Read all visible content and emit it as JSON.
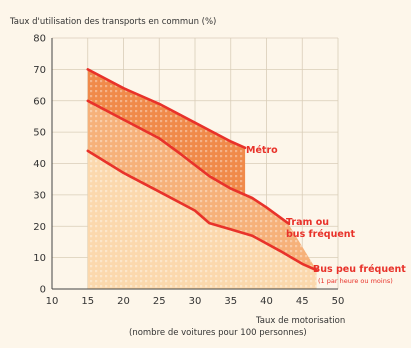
{
  "chart_data": {
    "type": "area",
    "ylabel": "Taux d'utilisation des transports en commun (%)",
    "xlabel_line1": "Taux de motorisation",
    "xlabel_line2": "(nombre de voitures pour 100 personnes)",
    "xlim": [
      10,
      50
    ],
    "ylim": [
      0,
      80
    ],
    "xticks": [
      10,
      15,
      20,
      25,
      30,
      35,
      40,
      45,
      50
    ],
    "yticks": [
      0,
      10,
      20,
      30,
      40,
      50,
      60,
      70,
      80
    ],
    "grid": true,
    "series": [
      {
        "name": "Métro",
        "upper": [
          [
            15,
            70
          ],
          [
            20,
            64
          ],
          [
            25,
            59
          ],
          [
            30,
            53
          ],
          [
            35,
            47
          ],
          [
            37,
            45
          ]
        ],
        "lower": [
          [
            15,
            60
          ],
          [
            20,
            54
          ],
          [
            25,
            48
          ],
          [
            28,
            43
          ],
          [
            32,
            36
          ],
          [
            35,
            32
          ],
          [
            37,
            30
          ]
        ]
      },
      {
        "name": "Tram ou bus fréquent",
        "upper": [
          [
            15,
            60
          ],
          [
            20,
            54
          ],
          [
            25,
            48
          ],
          [
            28,
            43
          ],
          [
            32,
            36
          ],
          [
            35,
            32
          ],
          [
            38,
            29
          ],
          [
            40,
            26
          ],
          [
            43,
            21
          ]
        ],
        "lower": [
          [
            15,
            44
          ],
          [
            20,
            37
          ],
          [
            25,
            31
          ],
          [
            30,
            25
          ],
          [
            32,
            21
          ],
          [
            35,
            19
          ],
          [
            38,
            17
          ],
          [
            42,
            12
          ],
          [
            45,
            8
          ],
          [
            47,
            6
          ]
        ]
      },
      {
        "name": "Bus peu fréquent",
        "line": [
          [
            15,
            44
          ],
          [
            20,
            37
          ],
          [
            25,
            31
          ],
          [
            30,
            25
          ],
          [
            32,
            21
          ],
          [
            35,
            19
          ],
          [
            38,
            17
          ],
          [
            42,
            12
          ],
          [
            45,
            8
          ],
          [
            47,
            6
          ]
        ],
        "lower_bound": 0
      }
    ],
    "annotations": {
      "metro": "Métro",
      "tram_line1": "Tram ou",
      "tram_line2": "bus fréquent",
      "bus": "Bus peu fréquent",
      "bus_note": "(1 par heure ou moins)"
    },
    "colors": {
      "metro_fill": "#f08a4a",
      "tram_fill": "#f6b17a",
      "bus_fill": "#fbd8ad",
      "curve": "#e8322a",
      "grid": "#d9cdb8",
      "background": "#fdf6ea"
    }
  }
}
